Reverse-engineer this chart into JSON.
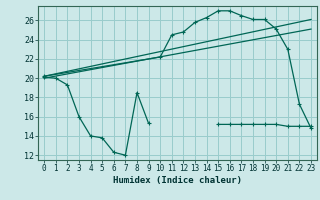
{
  "xlabel": "Humidex (Indice chaleur)",
  "background_color": "#cce8e8",
  "grid_color": "#99cccc",
  "line_color": "#006655",
  "x_ticks": [
    0,
    1,
    2,
    3,
    4,
    5,
    6,
    7,
    8,
    9,
    10,
    11,
    12,
    13,
    14,
    15,
    16,
    17,
    18,
    19,
    20,
    21,
    22,
    23
  ],
  "ylim": [
    11.5,
    27.5
  ],
  "xlim": [
    -0.5,
    23.5
  ],
  "yticks": [
    12,
    14,
    16,
    18,
    20,
    22,
    24,
    26
  ],
  "seg1_x": [
    0,
    1,
    2,
    3,
    4,
    5,
    6,
    7,
    8,
    9
  ],
  "seg1_y": [
    20.1,
    20.0,
    19.3,
    16.0,
    14.0,
    13.8,
    12.3,
    12.0,
    18.5,
    15.3
  ],
  "seg2_x": [
    15,
    16,
    17,
    18,
    19,
    20,
    21,
    22,
    23
  ],
  "seg2_y": [
    15.2,
    15.2,
    15.2,
    15.2,
    15.2,
    15.2,
    15.0,
    15.0,
    15.0
  ],
  "curve_x": [
    0,
    10,
    11,
    12,
    13,
    14,
    15,
    16,
    17,
    18,
    19,
    20,
    21,
    22,
    23
  ],
  "curve_y": [
    20.2,
    22.2,
    24.5,
    24.8,
    25.8,
    26.3,
    27.0,
    27.0,
    26.5,
    26.1,
    26.1,
    25.1,
    23.0,
    17.3,
    14.8
  ],
  "line1_x": [
    0,
    23
  ],
  "line1_y": [
    20.2,
    26.1
  ],
  "line2_x": [
    0,
    23
  ],
  "line2_y": [
    20.0,
    25.1
  ]
}
